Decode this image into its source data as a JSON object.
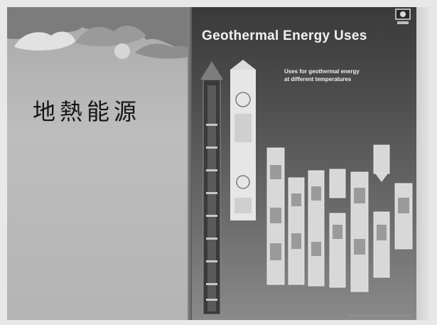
{
  "left_slide": {
    "cjk_title": "地熱能源"
  },
  "right_slide": {
    "title": "Geothermal Energy Uses",
    "subtitle_line1": "Uses for geothermal energy",
    "subtitle_line2": "at different temperatures"
  },
  "icons": {
    "logo": "logo-icon",
    "thermometer": "thermometer-icon"
  }
}
